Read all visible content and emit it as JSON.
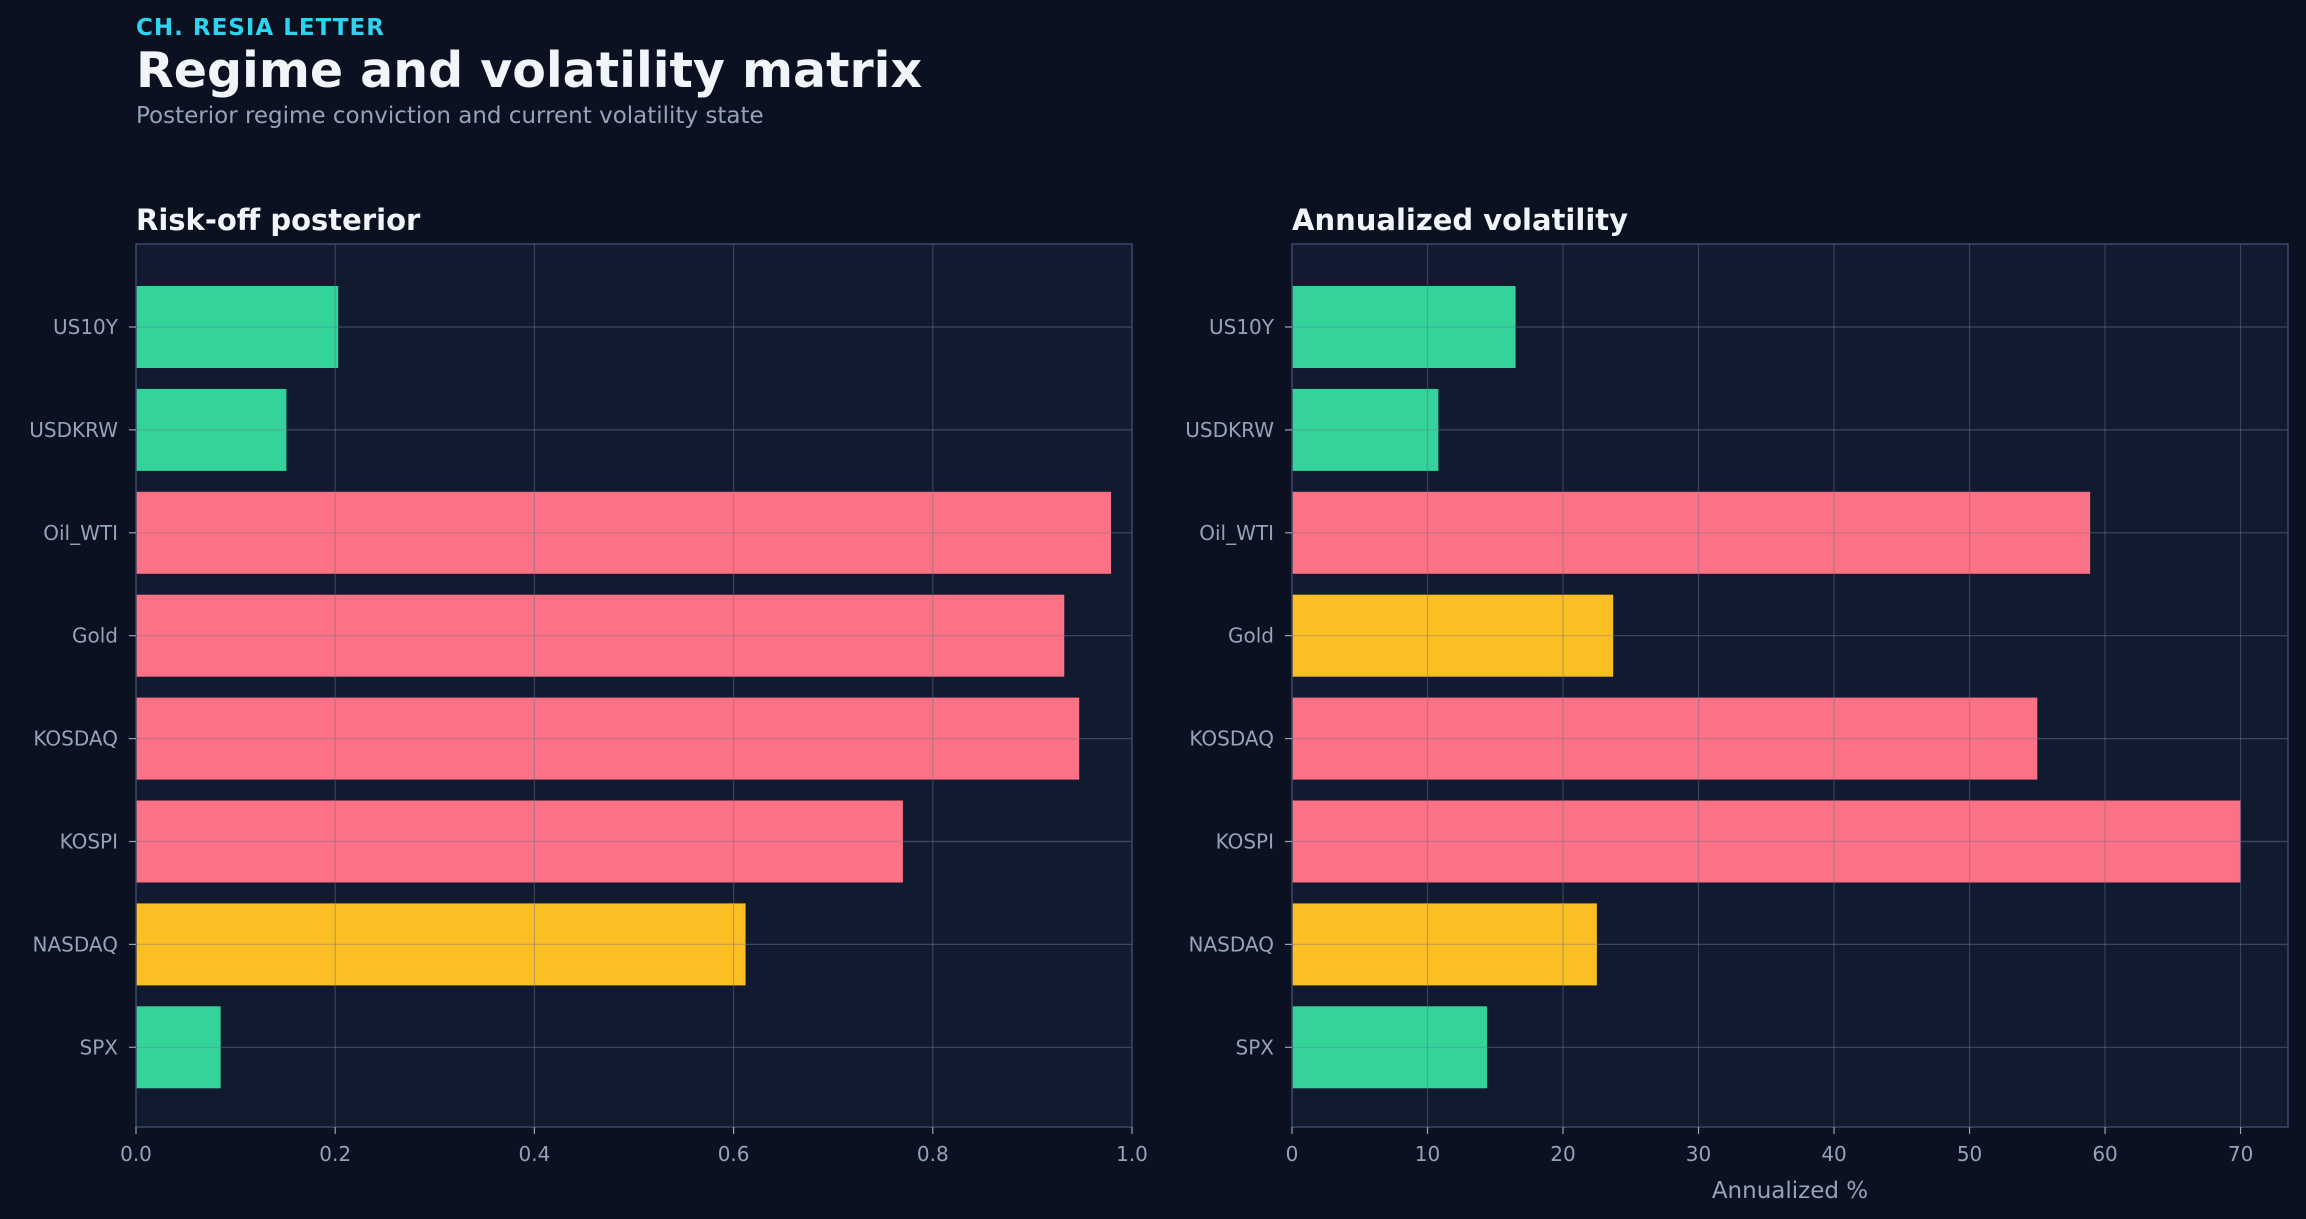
{
  "header": {
    "eyebrow": "CH. RESIA LETTER",
    "title": "Regime and volatility matrix",
    "subtitle": "Posterior regime conviction and current volatility state"
  },
  "colors": {
    "green": "#34d399",
    "red": "#fb7185",
    "yellow": "#fbbf24",
    "panel_bg": "#111a2f",
    "panel_border": "#3a4a6b",
    "grid": "#26324b",
    "tick_text": "#94a3b8",
    "title_text": "#f1f5f9"
  },
  "chart_data": [
    {
      "type": "bar",
      "orientation": "horizontal",
      "title": "Risk-off posterior",
      "xlabel": "",
      "ylabel": "",
      "categories": [
        "US10Y",
        "USDKRW",
        "Oil_WTI",
        "Gold",
        "KOSDAQ",
        "KOSPI",
        "NASDAQ",
        "SPX"
      ],
      "values": [
        0.203,
        0.151,
        0.979,
        0.932,
        0.947,
        0.77,
        0.612,
        0.085
      ],
      "bar_colors": [
        "green",
        "green",
        "red",
        "red",
        "red",
        "red",
        "yellow",
        "green"
      ],
      "xlim": [
        0,
        1.0
      ],
      "xticks": [
        0.0,
        0.2,
        0.4,
        0.6,
        0.8,
        1.0
      ],
      "xtick_labels": [
        "0.0",
        "0.2",
        "0.4",
        "0.6",
        "0.8",
        "1.0"
      ],
      "grid": true
    },
    {
      "type": "bar",
      "orientation": "horizontal",
      "title": "Annualized volatility",
      "xlabel": "Annualized %",
      "ylabel": "",
      "categories": [
        "US10Y",
        "USDKRW",
        "Oil_WTI",
        "Gold",
        "KOSDAQ",
        "KOSPI",
        "NASDAQ",
        "SPX"
      ],
      "values": [
        16.5,
        10.8,
        58.9,
        23.7,
        55.0,
        70.0,
        22.5,
        14.4
      ],
      "bar_colors": [
        "green",
        "green",
        "red",
        "yellow",
        "red",
        "red",
        "yellow",
        "green"
      ],
      "xlim": [
        0,
        73.5
      ],
      "xticks": [
        0,
        10,
        20,
        30,
        40,
        50,
        60,
        70
      ],
      "xtick_labels": [
        "0",
        "10",
        "20",
        "30",
        "40",
        "50",
        "60",
        "70"
      ],
      "grid": true
    }
  ]
}
